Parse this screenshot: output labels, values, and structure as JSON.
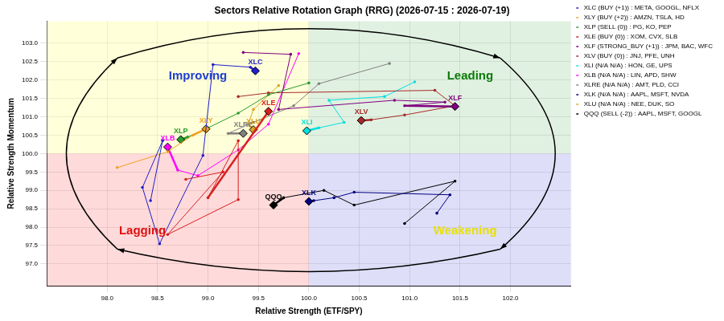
{
  "chart_data": {
    "type": "scatter",
    "title": "Sectors Relative Rotation Graph (RRG) (2026-07-15 : 2026-07-19)",
    "x_label": "Relative Strength (ETF/SPY)",
    "y_label": "Relative Strength Momentum",
    "xlim": [
      97.4,
      102.6
    ],
    "ylim": [
      96.4,
      103.6
    ],
    "xticks": [
      {
        "value": 98.0,
        "label": "98.0"
      },
      {
        "value": 98.5,
        "label": "98.5"
      },
      {
        "value": 99.0,
        "label": "99.0"
      },
      {
        "value": 99.5,
        "label": "99.5"
      },
      {
        "value": 100.0,
        "label": "100.0"
      },
      {
        "value": 100.5,
        "label": "100.5"
      },
      {
        "value": 101.0,
        "label": "101.0"
      },
      {
        "value": 101.5,
        "label": "101.5"
      },
      {
        "value": 102.0,
        "label": "102.0"
      }
    ],
    "yticks": [
      {
        "value": 97.0,
        "label": "97.0"
      },
      {
        "value": 97.5,
        "label": "97.5"
      },
      {
        "value": 98.0,
        "label": "98.0"
      },
      {
        "value": 98.5,
        "label": "98.5"
      },
      {
        "value": 99.0,
        "label": "99.0"
      },
      {
        "value": 99.5,
        "label": "99.5"
      },
      {
        "value": 100.0,
        "label": "100.0"
      },
      {
        "value": 100.5,
        "label": "100.5"
      },
      {
        "value": 101.0,
        "label": "101.0"
      },
      {
        "value": 101.5,
        "label": "101.5"
      },
      {
        "value": 102.0,
        "label": "102.0"
      },
      {
        "value": 102.5,
        "label": "102.5"
      },
      {
        "value": 103.0,
        "label": "103.0"
      }
    ],
    "grid": true,
    "legend": "right",
    "marker": "diamond",
    "quadrant_center": [
      100.0,
      100.0
    ],
    "quadrants": [
      {
        "text": "Improving",
        "x": 98.9,
        "y": 102.1,
        "color": "#1f3fd0"
      },
      {
        "text": "Leading",
        "x": 101.6,
        "y": 102.1,
        "color": "#0a7a0a"
      },
      {
        "text": "Lagging",
        "x": 98.35,
        "y": 97.9,
        "color": "#e01010"
      },
      {
        "text": "Weakening",
        "x": 101.55,
        "y": 97.9,
        "color": "#e8e000"
      }
    ],
    "series": [
      {
        "name": "XLC (BUY (+1)) : META, GOOGL, NFLX",
        "label": "XLC",
        "color": "#1f1fcc",
        "x": [
          98.43,
          98.55,
          98.35,
          98.52,
          98.95,
          99.05,
          99.42,
          99.47
        ],
        "values": [
          98.72,
          100.35,
          99.08,
          97.55,
          99.95,
          102.42,
          102.35,
          102.25
        ]
      },
      {
        "name": "XLY (BUY (+2)) : AMZN, TSLA, HD",
        "label": "XLY",
        "color": "#f0a020",
        "x": [
          98.1,
          98.6,
          98.85,
          98.98
        ],
        "values": [
          99.62,
          100.05,
          100.5,
          100.67
        ]
      },
      {
        "name": "XLP (SELL (0)) : PG, KO, PEP",
        "label": "XLP",
        "color": "#2a9a2a",
        "x": [
          100.0,
          99.6,
          99.3,
          99.0,
          98.8,
          98.73
        ],
        "values": [
          101.92,
          101.6,
          101.1,
          100.7,
          100.45,
          100.38
        ]
      },
      {
        "name": "XLE (BUY (0)) : XOM, CVX, SLB",
        "label": "XLE",
        "color": "#d62020",
        "x": [
          98.78,
          99.15,
          98.6,
          99.3,
          99.3,
          99.0,
          99.6
        ],
        "values": [
          99.3,
          99.5,
          97.8,
          98.75,
          100.35,
          98.8,
          101.15
        ]
      },
      {
        "name": "XLF (STRONG_BUY (+1)) : JPM, BAC, WFC",
        "label": "XLF",
        "color": "#800080",
        "x": [
          99.35,
          99.82,
          99.7,
          100.85,
          101.35,
          100.95,
          101.45
        ],
        "values": [
          102.75,
          102.7,
          101.2,
          101.45,
          101.4,
          101.3,
          101.28
        ]
      },
      {
        "name": "XLV (BUY (0)) : JNJ, PFE, UNH",
        "label": "XLV",
        "color": "#a52a2a",
        "x": [
          99.3,
          99.6,
          101.25,
          101.45,
          100.95,
          100.62,
          100.52
        ],
        "values": [
          101.55,
          101.65,
          101.72,
          101.3,
          101.05,
          100.92,
          100.9
        ]
      },
      {
        "name": "XLI (N/A N/A) : HON, GE, UPS",
        "label": "XLI",
        "color": "#00e0e0",
        "x": [
          101.05,
          100.75,
          100.2,
          100.35,
          100.1,
          99.98
        ],
        "values": [
          101.95,
          101.55,
          101.45,
          100.85,
          100.7,
          100.62
        ]
      },
      {
        "name": "XLB (N/A N/A) : LIN, APD, SHW",
        "label": "XLB",
        "color": "#ff00ff",
        "x": [
          99.9,
          99.6,
          99.3,
          98.9,
          98.7,
          98.6
        ],
        "values": [
          102.72,
          100.8,
          100.1,
          99.4,
          99.55,
          100.18
        ]
      },
      {
        "name": "XLRE (N/A N/A) : AMT, PLD, CCI",
        "label": "XLRE",
        "color": "#808080",
        "x": [
          100.8,
          100.1,
          99.85,
          99.45,
          99.2,
          99.35
        ],
        "values": [
          102.45,
          101.9,
          101.3,
          100.85,
          100.55,
          100.55
        ]
      },
      {
        "name": "XLK (N/A N/A) : AAPL, MSFT, NVDA",
        "label": "XLK",
        "color": "#000080",
        "x": [
          101.27,
          101.4,
          100.45,
          100.25,
          100.05,
          100.0
        ],
        "values": [
          98.38,
          98.88,
          98.95,
          98.8,
          98.72,
          98.7
        ]
      },
      {
        "name": "XLU (N/A N/A) : NEE, DUK, SO",
        "label": "XLU",
        "color": "#daa520",
        "x": [
          99.7,
          99.45,
          99.4,
          99.45
        ],
        "values": [
          101.85,
          101.2,
          100.8,
          100.65
        ]
      },
      {
        "name": "QQQ (SELL (-2)) : AAPL, MSFT, GOOGL",
        "label": "QQQ",
        "color": "#000000",
        "x": [
          100.95,
          101.45,
          100.45,
          100.15,
          99.75,
          99.65
        ],
        "values": [
          98.1,
          99.25,
          98.6,
          99.0,
          98.8,
          98.6
        ]
      }
    ]
  }
}
